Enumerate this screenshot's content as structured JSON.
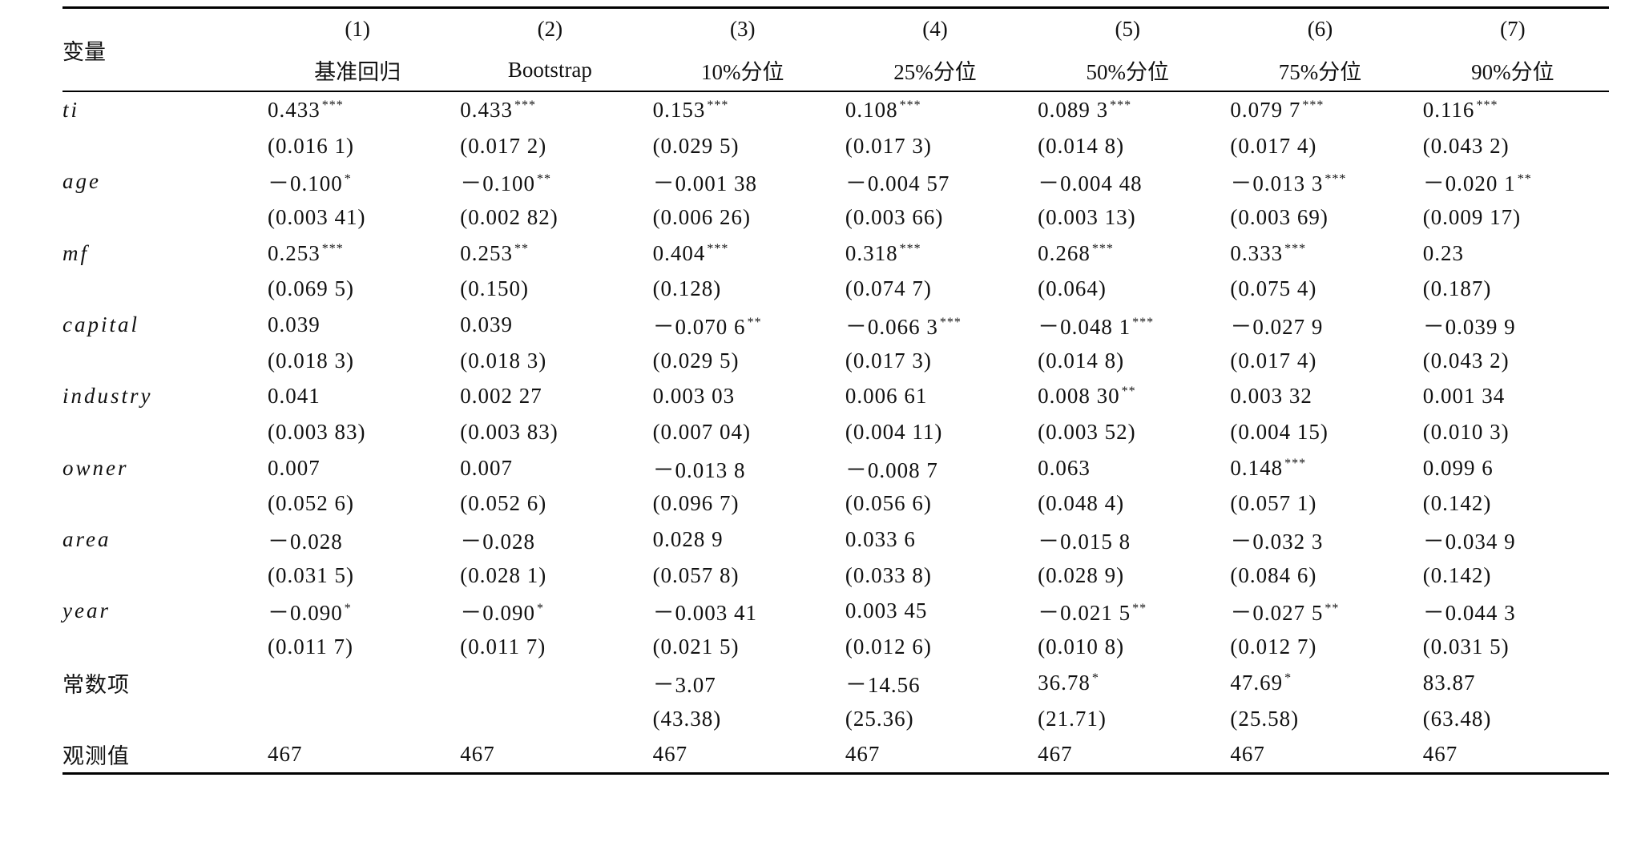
{
  "table": {
    "header": {
      "variable": "变量",
      "numbers": [
        "(1)",
        "(2)",
        "(3)",
        "(4)",
        "(5)",
        "(6)",
        "(7)"
      ],
      "names": [
        "基准回归",
        "Bootstrap",
        "10%分位",
        "25%分位",
        "50%分位",
        "75%分位",
        "90%分位"
      ]
    },
    "rows": [
      {
        "label": "ti",
        "coef": [
          {
            "v": "0.433",
            "s": "***"
          },
          {
            "v": "0.433",
            "s": "***"
          },
          {
            "v": "0.153",
            "s": "***"
          },
          {
            "v": "0.108",
            "s": "***"
          },
          {
            "v": "0.089 3",
            "s": "***"
          },
          {
            "v": "0.079 7",
            "s": "***"
          },
          {
            "v": "0.116",
            "s": "***"
          }
        ],
        "se": [
          "(0.016 1)",
          "(0.017 2)",
          "(0.029 5)",
          "(0.017 3)",
          "(0.014 8)",
          "(0.017 4)",
          "(0.043 2)"
        ]
      },
      {
        "label": "age",
        "coef": [
          {
            "v": "－0.100",
            "s": "*"
          },
          {
            "v": "－0.100",
            "s": "**"
          },
          {
            "v": "－0.001 38"
          },
          {
            "v": "－0.004 57"
          },
          {
            "v": "－0.004 48"
          },
          {
            "v": "－0.013 3",
            "s": "***"
          },
          {
            "v": "－0.020 1",
            "s": "**"
          }
        ],
        "se": [
          "(0.003 41)",
          "(0.002 82)",
          "(0.006 26)",
          "(0.003 66)",
          "(0.003 13)",
          "(0.003 69)",
          "(0.009 17)"
        ]
      },
      {
        "label": "mf",
        "coef": [
          {
            "v": "0.253",
            "s": "***"
          },
          {
            "v": "0.253",
            "s": "**"
          },
          {
            "v": "0.404",
            "s": "***"
          },
          {
            "v": "0.318",
            "s": "***"
          },
          {
            "v": "0.268",
            "s": "***"
          },
          {
            "v": "0.333",
            "s": "***"
          },
          {
            "v": "0.23"
          }
        ],
        "se": [
          "(0.069 5)",
          "(0.150)",
          "(0.128)",
          "(0.074 7)",
          "(0.064)",
          "(0.075 4)",
          "(0.187)"
        ]
      },
      {
        "label": "capital",
        "coef": [
          {
            "v": "0.039"
          },
          {
            "v": "0.039"
          },
          {
            "v": "－0.070 6",
            "s": "**"
          },
          {
            "v": "－0.066 3",
            "s": "***"
          },
          {
            "v": "－0.048 1",
            "s": "***"
          },
          {
            "v": "－0.027 9"
          },
          {
            "v": "－0.039 9"
          }
        ],
        "se": [
          "(0.018 3)",
          "(0.018 3)",
          "(0.029 5)",
          "(0.017 3)",
          "(0.014 8)",
          "(0.017 4)",
          "(0.043 2)"
        ]
      },
      {
        "label": "industry",
        "coef": [
          {
            "v": "0.041"
          },
          {
            "v": "0.002 27"
          },
          {
            "v": "0.003 03"
          },
          {
            "v": "0.006 61"
          },
          {
            "v": "0.008 30",
            "s": "**"
          },
          {
            "v": "0.003 32"
          },
          {
            "v": "0.001 34"
          }
        ],
        "se": [
          "(0.003 83)",
          "(0.003 83)",
          "(0.007 04)",
          "(0.004 11)",
          "(0.003 52)",
          "(0.004 15)",
          "(0.010 3)"
        ]
      },
      {
        "label": "owner",
        "coef": [
          {
            "v": "0.007"
          },
          {
            "v": "0.007"
          },
          {
            "v": "－0.013 8"
          },
          {
            "v": "－0.008 7"
          },
          {
            "v": "0.063"
          },
          {
            "v": "0.148",
            "s": "***"
          },
          {
            "v": "0.099 6"
          }
        ],
        "se": [
          "(0.052 6)",
          "(0.052 6)",
          "(0.096 7)",
          "(0.056 6)",
          "(0.048 4)",
          "(0.057 1)",
          "(0.142)"
        ]
      },
      {
        "label": "area",
        "coef": [
          {
            "v": "－0.028"
          },
          {
            "v": "－0.028"
          },
          {
            "v": "0.028 9"
          },
          {
            "v": "0.033 6"
          },
          {
            "v": "－0.015 8"
          },
          {
            "v": "－0.032 3"
          },
          {
            "v": "－0.034 9"
          }
        ],
        "se": [
          "(0.031 5)",
          "(0.028 1)",
          "(0.057 8)",
          "(0.033 8)",
          "(0.028 9)",
          "(0.084 6)",
          "(0.142)"
        ]
      },
      {
        "label": "year",
        "coef": [
          {
            "v": "－0.090",
            "s": "*"
          },
          {
            "v": "－0.090",
            "s": "*"
          },
          {
            "v": "－0.003 41"
          },
          {
            "v": "0.003 45"
          },
          {
            "v": "－0.021 5",
            "s": "**"
          },
          {
            "v": "－0.027 5",
            "s": "**"
          },
          {
            "v": "－0.044 3"
          }
        ],
        "se": [
          "(0.011 7)",
          "(0.011 7)",
          "(0.021 5)",
          "(0.012 6)",
          "(0.010 8)",
          "(0.012 7)",
          "(0.031 5)"
        ]
      },
      {
        "label": "常数项",
        "coef": [
          null,
          null,
          {
            "v": "－3.07"
          },
          {
            "v": "－14.56"
          },
          {
            "v": "36.78",
            "s": "*"
          },
          {
            "v": "47.69",
            "s": "*"
          },
          {
            "v": "83.87"
          }
        ],
        "se": [
          null,
          null,
          "(43.38)",
          "(25.36)",
          "(21.71)",
          "(25.58)",
          "(63.48)"
        ]
      }
    ],
    "obs": {
      "label": "观测值",
      "values": [
        "467",
        "467",
        "467",
        "467",
        "467",
        "467",
        "467"
      ]
    }
  }
}
